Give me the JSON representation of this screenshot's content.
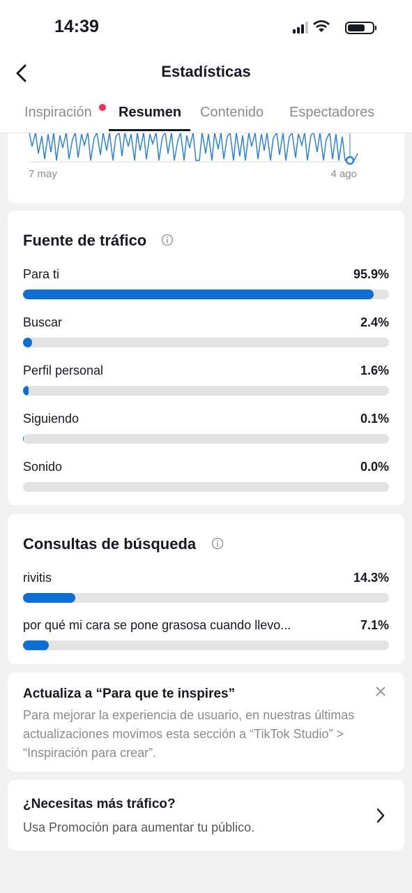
{
  "status_bar": {
    "time": "14:39"
  },
  "header": {
    "title": "Estadísticas"
  },
  "tabs": [
    "Inspiración",
    "Resumen",
    "Contenido",
    "Espectadores"
  ],
  "trend_chart": {
    "x_labels": [
      "7 may",
      "4 ago"
    ]
  },
  "traffic_source": {
    "title": "Fuente de tráfico",
    "items": [
      {
        "label": "Para ti",
        "value": 95.9,
        "value_label": "95.9%"
      },
      {
        "label": "Buscar",
        "value": 2.4,
        "value_label": "2.4%"
      },
      {
        "label": "Perfil personal",
        "value": 1.6,
        "value_label": "1.6%"
      },
      {
        "label": "Siguiendo",
        "value": 0.1,
        "value_label": "0.1%"
      },
      {
        "label": "Sonido",
        "value": 0.0,
        "value_label": "0.0%"
      }
    ]
  },
  "search_queries": {
    "title": "Consultas de búsqueda",
    "items": [
      {
        "label": "rivitis",
        "value": 14.3,
        "value_label": "14.3%"
      },
      {
        "label": "por qué mi cara se pone grasosa cuando llevo...",
        "value": 7.1,
        "value_label": "7.1%"
      }
    ]
  },
  "update_notice": {
    "title": "Actualiza a “Para que te inspires”",
    "body": "Para mejorar la experiencia de usuario, en nuestras últimas actualizaciones movimos esta sección a “TikTok Studio” > “Inspiración para crear”."
  },
  "promotion": {
    "title": "¿Necesitas más tráfico?",
    "subtitle": "Usa Promoción para aumentar tu público."
  }
}
